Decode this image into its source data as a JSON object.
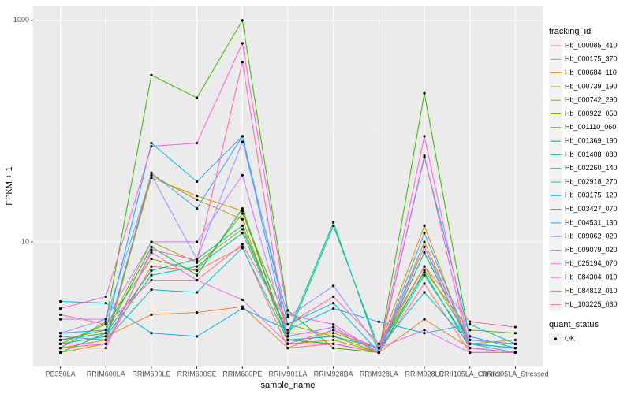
{
  "chart_data": {
    "type": "line",
    "log_y": true,
    "grid": true,
    "x_label": "sample_name",
    "y_label": "FPKM + 1",
    "categories": [
      "PB350LA",
      "RRIM600LA",
      "RRIM600LE",
      "RRIM600SE",
      "RRIM600PE",
      "RRIM901LA",
      "RRIM928BA",
      "RRIM928LA",
      "RRIM928LE",
      "RRII105LA_Control",
      "RRII105LA_Stressed"
    ],
    "ylim": [
      0.75,
      1340
    ],
    "yticks": [
      10,
      1000
    ],
    "legend_title": "tracking_id",
    "legend_position": "right",
    "point_legend_title": "quant_status",
    "point_legend_label": "OK",
    "point_color": "#000000",
    "series": [
      {
        "name": "Hb_000085_410",
        "color": "#F8766D",
        "values": [
          1.1,
          1.2,
          6.0,
          5.5,
          9,
          1.1,
          1.2,
          1.0,
          4.2,
          1.0,
          1.0
        ]
      },
      {
        "name": "Hb_000175_370",
        "color": "#EA8331",
        "values": [
          1.2,
          1.4,
          2.2,
          2.3,
          2.6,
          1.1,
          1.6,
          1.0,
          2.0,
          1.1,
          1.0
        ]
      },
      {
        "name": "Hb_000684_110",
        "color": "#D89000",
        "values": [
          1.1,
          1.3,
          38,
          26,
          19,
          1.3,
          1.4,
          1.1,
          14,
          1.1,
          1.1
        ]
      },
      {
        "name": "Hb_000739_190",
        "color": "#C09B00",
        "values": [
          1.0,
          1.2,
          40,
          24,
          16,
          1.2,
          1.3,
          1.0,
          10,
          1.2,
          1.3
        ]
      },
      {
        "name": "Hb_000742_290",
        "color": "#A3A500",
        "values": [
          1.3,
          1.6,
          10,
          6.5,
          13,
          1.5,
          1.5,
          1.1,
          6,
          1.3,
          1.2
        ]
      },
      {
        "name": "Hb_000922_050",
        "color": "#7CAE00",
        "values": [
          1.2,
          1.8,
          7,
          5.5,
          18,
          1.8,
          1.4,
          1.0,
          5.5,
          1.6,
          1.5
        ]
      },
      {
        "name": "Hb_001110_060",
        "color": "#39B600",
        "values": [
          1.1,
          1.9,
          320,
          200,
          1000,
          2.4,
          1.1,
          1.0,
          220,
          1.3,
          1.2
        ]
      },
      {
        "name": "Hb_001369_190",
        "color": "#00BB4E",
        "values": [
          1.0,
          1.5,
          9,
          5,
          20,
          1.3,
          1.2,
          1.0,
          8,
          1.2,
          1.1
        ]
      },
      {
        "name": "Hb_001408_080",
        "color": "#00BF7D",
        "values": [
          1.3,
          1.5,
          5.5,
          7,
          14,
          1.4,
          14,
          1.1,
          5.3,
          1.1,
          1.0
        ]
      },
      {
        "name": "Hb_002260_140",
        "color": "#00C1A3",
        "values": [
          1.2,
          1.4,
          5,
          6,
          12,
          1.5,
          15,
          1.0,
          5,
          1.2,
          1.1
        ]
      },
      {
        "name": "Hb_002918_270",
        "color": "#00BFC4",
        "values": [
          1.3,
          1.3,
          3.7,
          3.5,
          8.8,
          1.3,
          1.4,
          1.1,
          3.5,
          1.2,
          1.1
        ]
      },
      {
        "name": "Hb_003175_120",
        "color": "#00BAE0",
        "values": [
          2.9,
          2.8,
          1.5,
          1.4,
          2.5,
          1.6,
          2.5,
          1.9,
          1.5,
          1.8,
          1.2
        ]
      },
      {
        "name": "Hb_003427_070",
        "color": "#00B0F6",
        "values": [
          1.5,
          1.6,
          78,
          35,
          90,
          1.8,
          2.8,
          1.0,
          58,
          1.4,
          1.1
        ]
      },
      {
        "name": "Hb_004531_130",
        "color": "#35A2FF",
        "values": [
          1.4,
          1.3,
          42,
          20,
          90,
          1.4,
          1.7,
          1.0,
          12,
          1.2,
          1.0
        ]
      },
      {
        "name": "Hb_009062_020",
        "color": "#9590FF",
        "values": [
          1.5,
          2.0,
          40,
          7,
          80,
          2.1,
          4,
          1.1,
          9,
          1.3,
          1.2
        ]
      },
      {
        "name": "Hb_009079_020",
        "color": "#C77CFF",
        "values": [
          2.0,
          2.0,
          10,
          10,
          40,
          1.4,
          1.7,
          1.0,
          9,
          1.1,
          1.1
        ]
      },
      {
        "name": "Hb_025194_070",
        "color": "#E76BF3",
        "values": [
          1.2,
          1.2,
          8,
          4.5,
          3,
          1.2,
          1.6,
          1.1,
          1.6,
          1.0,
          1.0
        ]
      },
      {
        "name": "Hb_084304_010",
        "color": "#FA62DB",
        "values": [
          2.5,
          3.2,
          73,
          78,
          620,
          2.2,
          1.8,
          1.0,
          90,
          1.1,
          1.0
        ]
      },
      {
        "name": "Hb_084812_010",
        "color": "#FF62BC",
        "values": [
          1.1,
          1.1,
          8.5,
          6.8,
          420,
          1.2,
          1.2,
          1.0,
          60,
          1.0,
          1.0
        ]
      },
      {
        "name": "Hb_103225_030",
        "color": "#FF6C91",
        "values": [
          2.2,
          1.8,
          4.5,
          4.5,
          9.5,
          1.8,
          3.2,
          1.2,
          6,
          1.9,
          1.7
        ]
      }
    ]
  }
}
